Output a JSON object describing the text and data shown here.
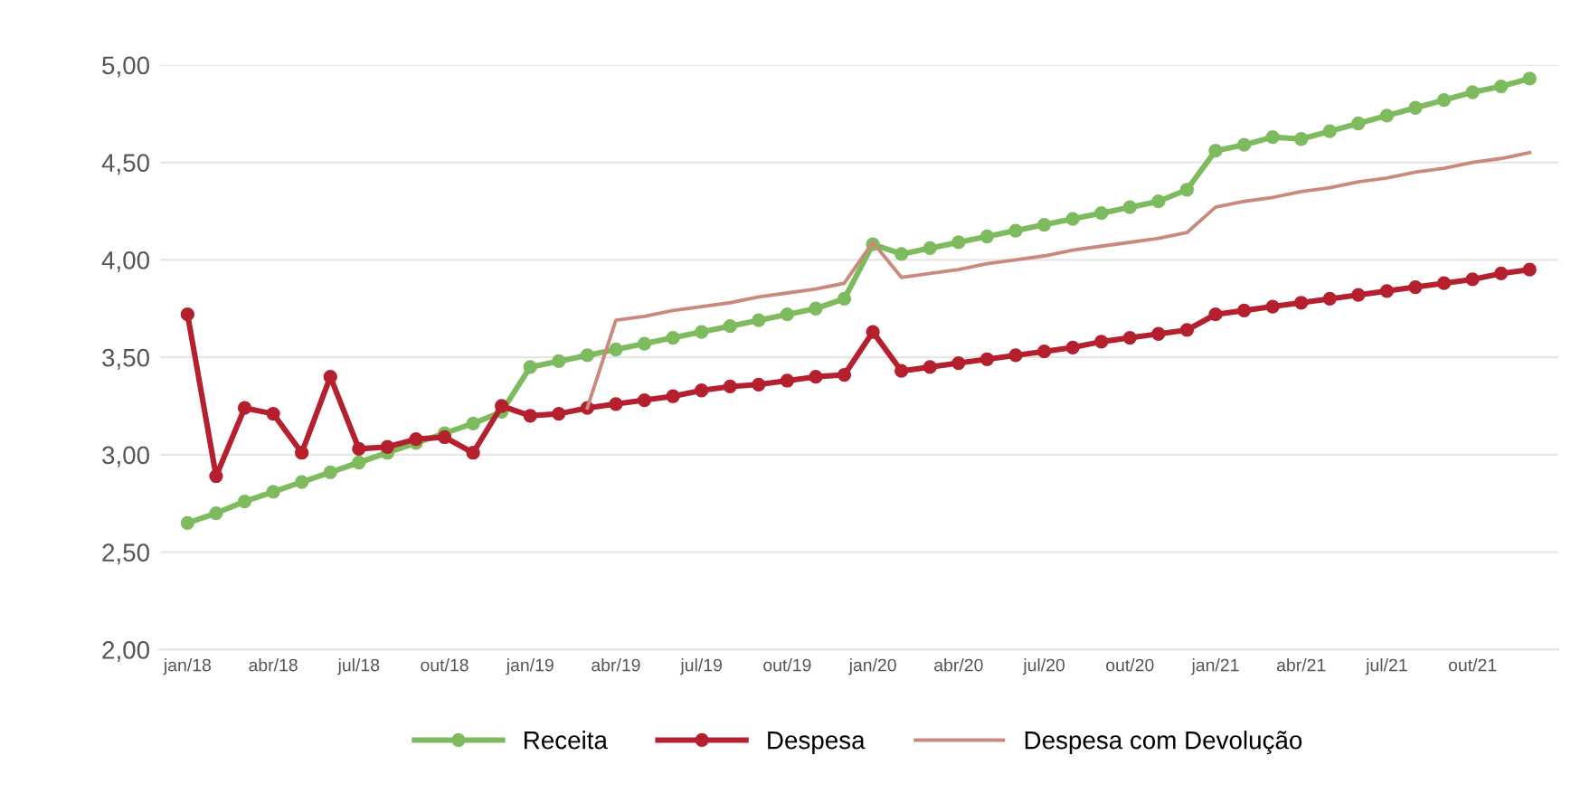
{
  "chart_data": {
    "type": "line",
    "categories": [
      "jan/18",
      null,
      null,
      "abr/18",
      null,
      null,
      "jul/18",
      null,
      null,
      "out/18",
      null,
      null,
      "jan/19",
      null,
      null,
      "abr/19",
      null,
      null,
      "jul/19",
      null,
      null,
      "out/19",
      null,
      null,
      "jan/20",
      null,
      null,
      "abr/20",
      null,
      null,
      "jul/20",
      null,
      null,
      "out/20",
      null,
      null,
      "jan/21",
      null,
      null,
      "abr/21",
      null,
      null,
      "jul/21",
      null,
      null,
      "out/21",
      null,
      null
    ],
    "series": [
      {
        "name": "Receita",
        "color": "#7dbb5e",
        "marker": "circle",
        "values": [
          2.65,
          2.7,
          2.76,
          2.81,
          2.86,
          2.91,
          2.96,
          3.01,
          3.06,
          3.11,
          3.16,
          3.22,
          3.45,
          3.48,
          3.51,
          3.54,
          3.57,
          3.6,
          3.63,
          3.66,
          3.69,
          3.72,
          3.75,
          3.8,
          4.08,
          4.03,
          4.06,
          4.09,
          4.12,
          4.15,
          4.18,
          4.21,
          4.24,
          4.27,
          4.3,
          4.36,
          4.56,
          4.59,
          4.63,
          4.62,
          4.66,
          4.7,
          4.74,
          4.78,
          4.82,
          4.86,
          4.89,
          4.93
        ]
      },
      {
        "name": "Despesa",
        "color": "#b5202e",
        "marker": "circle",
        "values": [
          3.72,
          2.89,
          3.24,
          3.21,
          3.01,
          3.4,
          3.03,
          3.04,
          3.08,
          3.09,
          3.01,
          3.25,
          3.2,
          3.21,
          3.24,
          3.26,
          3.28,
          3.3,
          3.33,
          3.35,
          3.36,
          3.38,
          3.4,
          3.41,
          3.63,
          3.43,
          3.45,
          3.47,
          3.49,
          3.51,
          3.53,
          3.55,
          3.58,
          3.6,
          3.62,
          3.64,
          3.72,
          3.74,
          3.76,
          3.78,
          3.8,
          3.82,
          3.84,
          3.86,
          3.88,
          3.9,
          3.93,
          3.95
        ]
      },
      {
        "name": "Despesa com Devolução",
        "color": "#c98a7c",
        "marker": "none",
        "values": [
          null,
          null,
          null,
          null,
          null,
          null,
          null,
          null,
          null,
          null,
          null,
          null,
          null,
          null,
          3.24,
          3.69,
          3.71,
          3.74,
          3.76,
          3.78,
          3.81,
          3.83,
          3.85,
          3.88,
          4.09,
          3.91,
          3.93,
          3.95,
          3.98,
          4.0,
          4.02,
          4.05,
          4.07,
          4.09,
          4.11,
          4.14,
          4.27,
          4.3,
          4.32,
          4.35,
          4.37,
          4.4,
          4.42,
          4.45,
          4.47,
          4.5,
          4.52,
          4.55
        ]
      }
    ],
    "ylim": [
      2.0,
      5.0
    ],
    "yticks": [
      {
        "value": 2.0,
        "label": "2,00"
      },
      {
        "value": 2.5,
        "label": "2,50"
      },
      {
        "value": 3.0,
        "label": "3,00"
      },
      {
        "value": 3.5,
        "label": "3,50"
      },
      {
        "value": 4.0,
        "label": "4,00"
      },
      {
        "value": 4.5,
        "label": "4,50"
      },
      {
        "value": 5.0,
        "label": "5,00"
      }
    ],
    "grid": "y",
    "legend": "bottom"
  }
}
